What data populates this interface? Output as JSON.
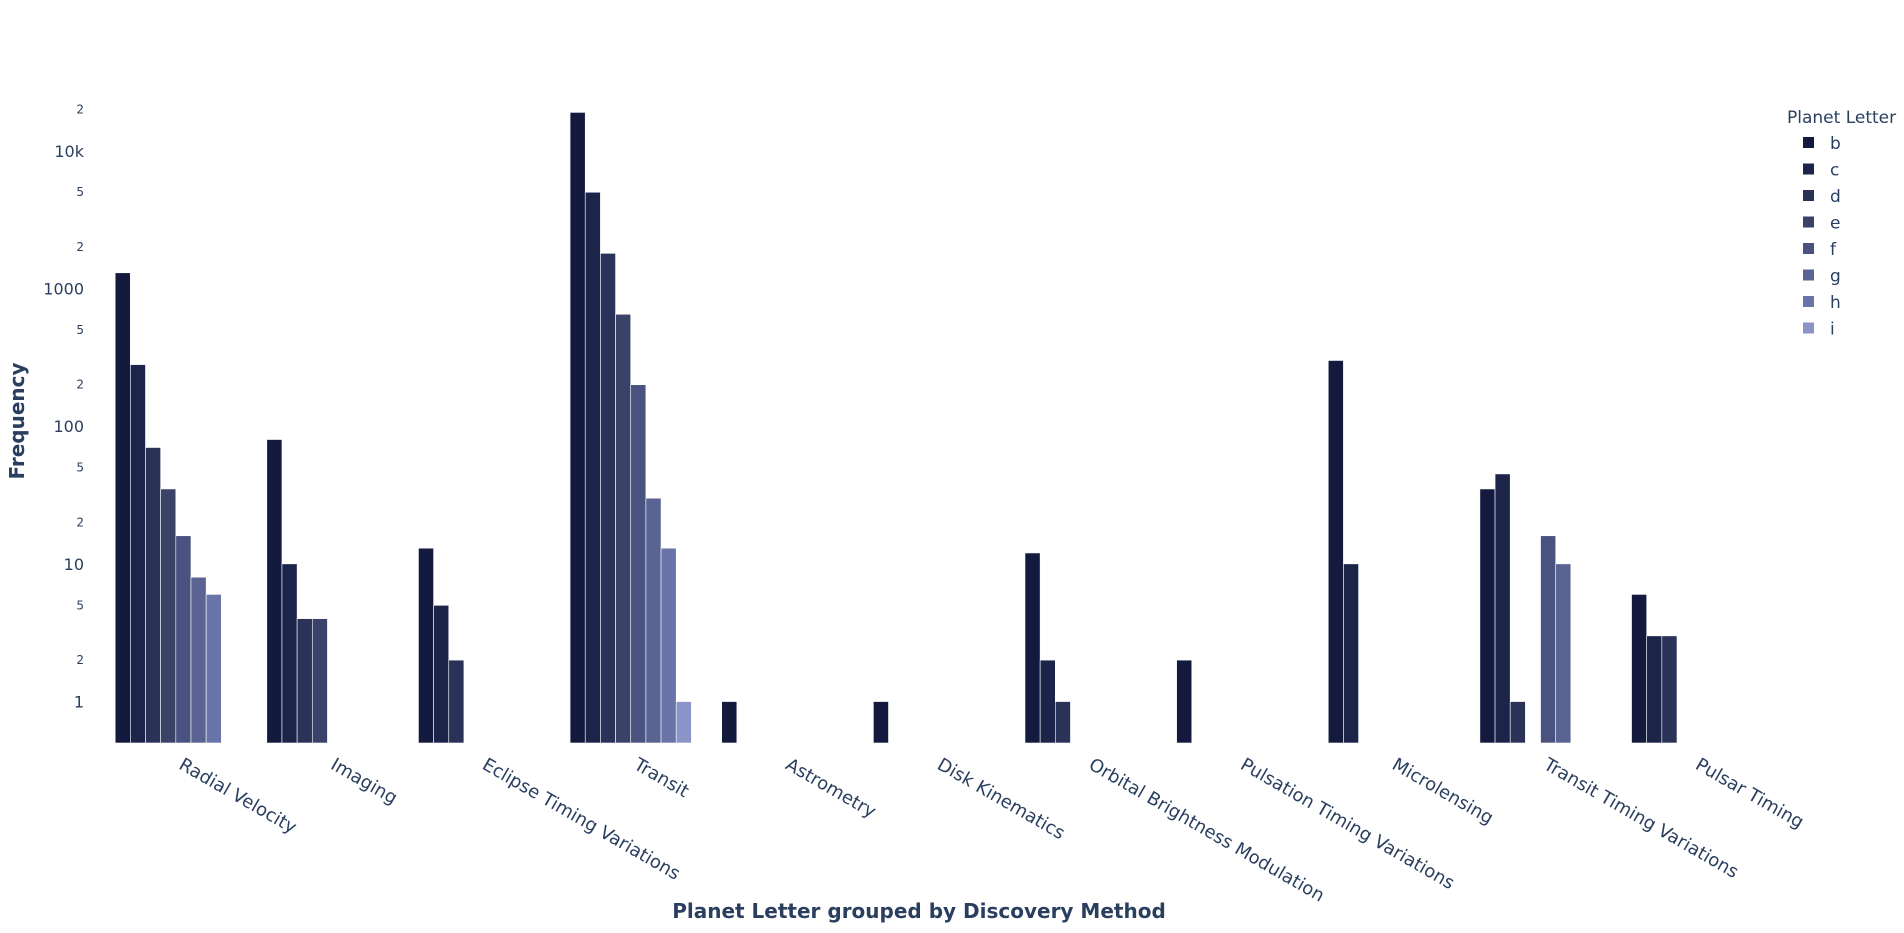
{
  "chart_data": {
    "type": "bar",
    "barmode": "group",
    "y_scale": "log",
    "xlabel": "Planet Letter grouped by Discovery Method",
    "ylabel": "Frequency",
    "legend_title": "Planet Letter",
    "legend_position": "top-right",
    "grid": false,
    "ylim": [
      0.5,
      25000
    ],
    "y_major_ticks": [
      {
        "value": 1,
        "label": "1"
      },
      {
        "value": 10,
        "label": "10"
      },
      {
        "value": 100,
        "label": "100"
      },
      {
        "value": 1000,
        "label": "1000"
      },
      {
        "value": 10000,
        "label": "10k"
      }
    ],
    "y_minor_ticks": [
      {
        "value": 2,
        "label": "2"
      },
      {
        "value": 5,
        "label": "5"
      },
      {
        "value": 20,
        "label": "2"
      },
      {
        "value": 50,
        "label": "5"
      },
      {
        "value": 200,
        "label": "2"
      },
      {
        "value": 500,
        "label": "5"
      },
      {
        "value": 2000,
        "label": "2"
      },
      {
        "value": 5000,
        "label": "5"
      },
      {
        "value": 20000,
        "label": "2"
      }
    ],
    "categories": [
      "Radial Velocity",
      "Imaging",
      "Eclipse Timing Variations",
      "Transit",
      "Astrometry",
      "Disk Kinematics",
      "Orbital Brightness Modulation",
      "Pulsation Timing Variations",
      "Microlensing",
      "Transit Timing Variations",
      "Pulsar Timing"
    ],
    "series": [
      {
        "name": "b",
        "color": "#131a3d",
        "values": [
          1300,
          80,
          13,
          19000,
          1,
          1,
          12,
          2,
          300,
          35,
          6
        ]
      },
      {
        "name": "c",
        "color": "#1d244a",
        "values": [
          280,
          10,
          5,
          5000,
          null,
          null,
          2,
          null,
          10,
          45,
          3
        ]
      },
      {
        "name": "d",
        "color": "#2b3258",
        "values": [
          70,
          4,
          2,
          1800,
          null,
          null,
          1,
          null,
          null,
          1,
          3
        ]
      },
      {
        "name": "e",
        "color": "#3b4268",
        "values": [
          35,
          4,
          null,
          650,
          null,
          null,
          null,
          null,
          null,
          null,
          null
        ]
      },
      {
        "name": "f",
        "color": "#4a5280",
        "values": [
          16,
          null,
          null,
          200,
          null,
          null,
          null,
          null,
          null,
          16,
          null
        ]
      },
      {
        "name": "g",
        "color": "#5a6392",
        "values": [
          8,
          null,
          null,
          30,
          null,
          null,
          null,
          null,
          null,
          10,
          null
        ]
      },
      {
        "name": "h",
        "color": "#6a74a8",
        "values": [
          6,
          null,
          null,
          13,
          null,
          null,
          null,
          null,
          null,
          null,
          null
        ]
      },
      {
        "name": "i",
        "color": "#8a94c6",
        "values": [
          null,
          null,
          null,
          1,
          null,
          null,
          null,
          null,
          null,
          null,
          null
        ]
      }
    ]
  }
}
